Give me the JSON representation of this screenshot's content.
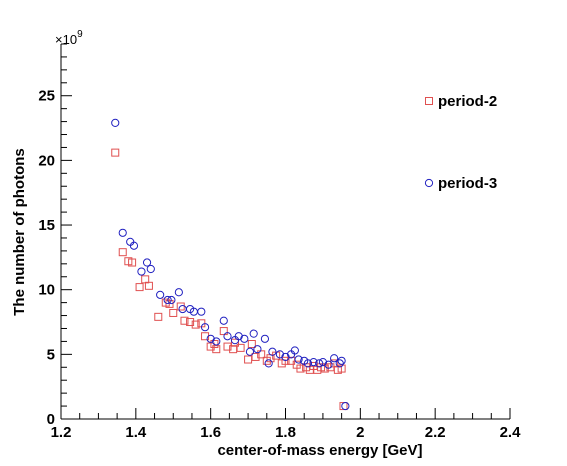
{
  "chart_data": {
    "type": "scatter",
    "title": "",
    "xlabel": "center-of-mass energy [GeV]",
    "ylabel": "The number of photons",
    "y_multiplier_base": "×10",
    "y_multiplier_exp": "9",
    "xlim": [
      1.2,
      2.4
    ],
    "ylim": [
      0,
      29
    ],
    "x_ticks": [
      1.2,
      1.4,
      1.6,
      1.8,
      2.0,
      2.2,
      2.4
    ],
    "x_tick_labels": [
      "1.2",
      "1.4",
      "1.6",
      "1.8",
      "2",
      "2.2",
      "2.4"
    ],
    "y_ticks": [
      0,
      5,
      10,
      15,
      20,
      25
    ],
    "y_tick_labels": [
      "0",
      "5",
      "10",
      "15",
      "20",
      "25"
    ],
    "grid": false,
    "legend_position": "right",
    "series": [
      {
        "name": "period-2",
        "marker": "open-square",
        "color": "#e05050",
        "points": [
          [
            1.345,
            20.6
          ],
          [
            1.365,
            12.9
          ],
          [
            1.38,
            12.2
          ],
          [
            1.39,
            12.1
          ],
          [
            1.41,
            10.2
          ],
          [
            1.425,
            10.8
          ],
          [
            1.435,
            10.3
          ],
          [
            1.46,
            7.9
          ],
          [
            1.48,
            9.0
          ],
          [
            1.49,
            8.9
          ],
          [
            1.5,
            8.2
          ],
          [
            1.52,
            8.7
          ],
          [
            1.53,
            7.6
          ],
          [
            1.545,
            7.5
          ],
          [
            1.56,
            7.3
          ],
          [
            1.575,
            7.4
          ],
          [
            1.585,
            6.4
          ],
          [
            1.6,
            5.6
          ],
          [
            1.61,
            5.8
          ],
          [
            1.615,
            5.4
          ],
          [
            1.635,
            6.8
          ],
          [
            1.645,
            5.6
          ],
          [
            1.66,
            5.4
          ],
          [
            1.665,
            5.9
          ],
          [
            1.68,
            5.5
          ],
          [
            1.7,
            4.6
          ],
          [
            1.71,
            5.8
          ],
          [
            1.72,
            4.8
          ],
          [
            1.735,
            5.0
          ],
          [
            1.75,
            4.5
          ],
          [
            1.76,
            4.7
          ],
          [
            1.775,
            4.9
          ],
          [
            1.79,
            4.3
          ],
          [
            1.8,
            4.5
          ],
          [
            1.815,
            4.5
          ],
          [
            1.83,
            4.2
          ],
          [
            1.84,
            3.9
          ],
          [
            1.855,
            4.0
          ],
          [
            1.865,
            3.8
          ],
          [
            1.875,
            4.1
          ],
          [
            1.885,
            3.8
          ],
          [
            1.895,
            4.0
          ],
          [
            1.905,
            3.9
          ],
          [
            1.92,
            4.0
          ],
          [
            1.93,
            4.3
          ],
          [
            1.94,
            3.8
          ],
          [
            1.95,
            3.9
          ],
          [
            1.955,
            1.0
          ]
        ]
      },
      {
        "name": "period-3",
        "marker": "open-circle",
        "color": "#2020c0",
        "points": [
          [
            1.345,
            22.9
          ],
          [
            1.365,
            14.4
          ],
          [
            1.385,
            13.7
          ],
          [
            1.395,
            13.4
          ],
          [
            1.415,
            11.4
          ],
          [
            1.43,
            12.1
          ],
          [
            1.44,
            11.6
          ],
          [
            1.465,
            9.6
          ],
          [
            1.485,
            9.2
          ],
          [
            1.495,
            9.2
          ],
          [
            1.515,
            9.8
          ],
          [
            1.525,
            8.5
          ],
          [
            1.545,
            8.5
          ],
          [
            1.555,
            8.3
          ],
          [
            1.575,
            8.3
          ],
          [
            1.585,
            7.1
          ],
          [
            1.6,
            6.2
          ],
          [
            1.615,
            6.0
          ],
          [
            1.635,
            7.6
          ],
          [
            1.645,
            6.4
          ],
          [
            1.665,
            6.1
          ],
          [
            1.675,
            6.4
          ],
          [
            1.69,
            6.2
          ],
          [
            1.705,
            5.2
          ],
          [
            1.715,
            6.6
          ],
          [
            1.725,
            5.4
          ],
          [
            1.745,
            6.2
          ],
          [
            1.755,
            4.3
          ],
          [
            1.765,
            5.2
          ],
          [
            1.785,
            5.0
          ],
          [
            1.8,
            4.8
          ],
          [
            1.815,
            5.0
          ],
          [
            1.825,
            5.3
          ],
          [
            1.835,
            4.6
          ],
          [
            1.85,
            4.5
          ],
          [
            1.86,
            4.3
          ],
          [
            1.875,
            4.4
          ],
          [
            1.89,
            4.3
          ],
          [
            1.9,
            4.4
          ],
          [
            1.915,
            4.2
          ],
          [
            1.93,
            4.7
          ],
          [
            1.945,
            4.3
          ],
          [
            1.95,
            4.5
          ],
          [
            1.96,
            1.0
          ]
        ]
      }
    ]
  }
}
